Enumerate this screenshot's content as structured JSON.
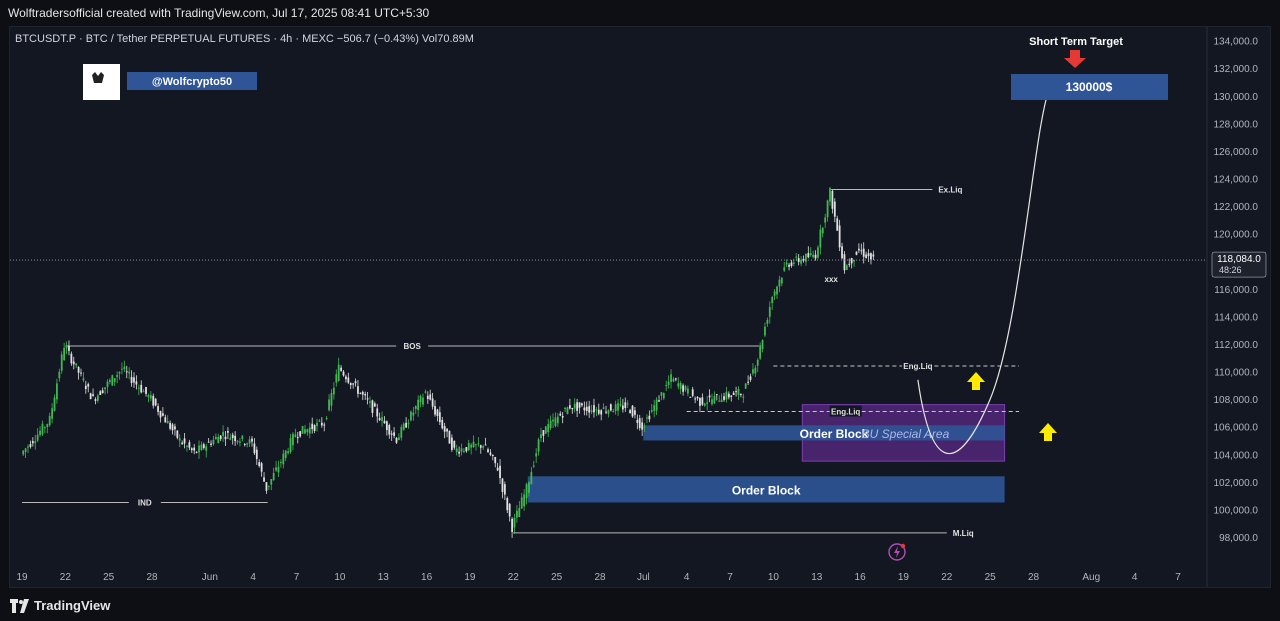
{
  "header": {
    "caption": "Wolftradersofficial created with TradingView.com, Jul 17, 2025 08:41 UTC+5:30",
    "symbol_line": "BTCUSDT.P · BTC / Tether PERPETUAL FUTURES · 4h · MEXC  −506.7 (−0.43%)  Vol70.89M"
  },
  "watermark": {
    "handle": "@Wolfcrypto50"
  },
  "footer": {
    "brand": "TradingView"
  },
  "colors": {
    "bull": "#3fb950",
    "bear": "#e0e0e0",
    "order_block": "#2f5597",
    "special_area": "#5b2a86",
    "target_box": "#2f5597",
    "arrow_up": "#ffeb00",
    "arrow_down": "#e53935"
  },
  "chart_data": {
    "type": "candlestick",
    "title": "",
    "ylabel": "",
    "ylim": [
      97200,
      134700
    ],
    "last_price": {
      "label": "118,084.0",
      "countdown": "48:26",
      "value": 118084
    },
    "y_ticks": [
      "134,000.0",
      "132,000.0",
      "130,000.0",
      "128,000.0",
      "126,000.0",
      "124,000.0",
      "122,000.0",
      "120,000.0",
      "118,000.0",
      "116,000.0",
      "114,000.0",
      "112,000.0",
      "110,000.0",
      "108,000.0",
      "106,000.0",
      "104,000.0",
      "102,000.0",
      "100,000.0",
      "98,000.0"
    ],
    "x_ticks": [
      "19",
      "22",
      "25",
      "28",
      "Jun",
      "4",
      "7",
      "10",
      "13",
      "16",
      "19",
      "22",
      "25",
      "28",
      "Jul",
      "4",
      "7",
      "10",
      "13",
      "16",
      "19",
      "22",
      "25",
      "28",
      "Aug",
      "4",
      "7"
    ],
    "price_path": [
      {
        "x": "May 19",
        "y": 104000
      },
      {
        "x": "May 21",
        "y": 106500
      },
      {
        "x": "May 22",
        "y": 111900
      },
      {
        "x": "May 24",
        "y": 108000
      },
      {
        "x": "May 26",
        "y": 110200
      },
      {
        "x": "May 28",
        "y": 108000
      },
      {
        "x": "May 30",
        "y": 105000
      },
      {
        "x": "May 31",
        "y": 104100
      },
      {
        "x": "Jun 2",
        "y": 105500
      },
      {
        "x": "Jun 4",
        "y": 104800
      },
      {
        "x": "Jun 5",
        "y": 101500
      },
      {
        "x": "Jun 7",
        "y": 105500
      },
      {
        "x": "Jun 9",
        "y": 106300
      },
      {
        "x": "Jun 10",
        "y": 110300
      },
      {
        "x": "Jun 12",
        "y": 107800
      },
      {
        "x": "Jun 14",
        "y": 105100
      },
      {
        "x": "Jun 16",
        "y": 108500
      },
      {
        "x": "Jun 18",
        "y": 104300
      },
      {
        "x": "Jun 20",
        "y": 104700
      },
      {
        "x": "Jun 21",
        "y": 103000
      },
      {
        "x": "Jun 22",
        "y": 98700
      },
      {
        "x": "Jun 23",
        "y": 101500
      },
      {
        "x": "Jun 24",
        "y": 105500
      },
      {
        "x": "Jun 26",
        "y": 107500
      },
      {
        "x": "Jun 28",
        "y": 107200
      },
      {
        "x": "Jun 30",
        "y": 107500
      },
      {
        "x": "Jul 1",
        "y": 106000
      },
      {
        "x": "Jul 3",
        "y": 109500
      },
      {
        "x": "Jul 5",
        "y": 107800
      },
      {
        "x": "Jul 8",
        "y": 108500
      },
      {
        "x": "Jul 9",
        "y": 111000
      },
      {
        "x": "Jul 10",
        "y": 115500
      },
      {
        "x": "Jul 11",
        "y": 117800
      },
      {
        "x": "Jul 13",
        "y": 118500
      },
      {
        "x": "Jul 14",
        "y": 123000
      },
      {
        "x": "Jul 15",
        "y": 117500
      },
      {
        "x": "Jul 16",
        "y": 118800
      },
      {
        "x": "Jul 17",
        "y": 118084
      }
    ],
    "annotations": [
      {
        "type": "hline",
        "label": "BOS",
        "y": 111850,
        "x_from": "May 22",
        "x_to": "Jul 9"
      },
      {
        "type": "hline",
        "label": "IND",
        "y": 100500,
        "x_from": "May 19",
        "x_to": "Jun 5"
      },
      {
        "type": "hline",
        "label": "Ex.Liq",
        "y": 123200,
        "x_from": "Jul 14",
        "x_to": "Jul 21"
      },
      {
        "type": "hline",
        "label": "M.Liq",
        "y": 98300,
        "x_from": "Jun 22",
        "x_to": "Jul 22"
      },
      {
        "type": "hline_dashed",
        "label": "Eng.Liq",
        "y": 110400,
        "x_from": "Jul 10",
        "x_to": "Jul 27"
      },
      {
        "type": "hline_dashed",
        "label": "Eng.Liq",
        "y": 107100,
        "x_from": "Jul 4",
        "x_to": "Jul 27"
      },
      {
        "type": "hline_dashed",
        "label": "xxx",
        "y": 116700,
        "x_from": "Jul 13",
        "x_to": "Jul 15"
      },
      {
        "type": "zone",
        "label": "Order Block",
        "y_from": 105000,
        "y_to": 106100,
        "x_from": "Jul 1",
        "x_to": "Jul 26"
      },
      {
        "type": "zone",
        "label": "Order Block",
        "y_from": 100500,
        "y_to": 102400,
        "x_from": "Jun 23",
        "x_to": "Jul 26"
      },
      {
        "type": "zone",
        "label": "BU Special Area",
        "y_from": 103500,
        "y_to": 107600,
        "x_from": "Jul 12",
        "x_to": "Jul 26"
      },
      {
        "type": "target",
        "label": "130000$",
        "caption": "Short Term Target",
        "y": 130500
      }
    ]
  }
}
